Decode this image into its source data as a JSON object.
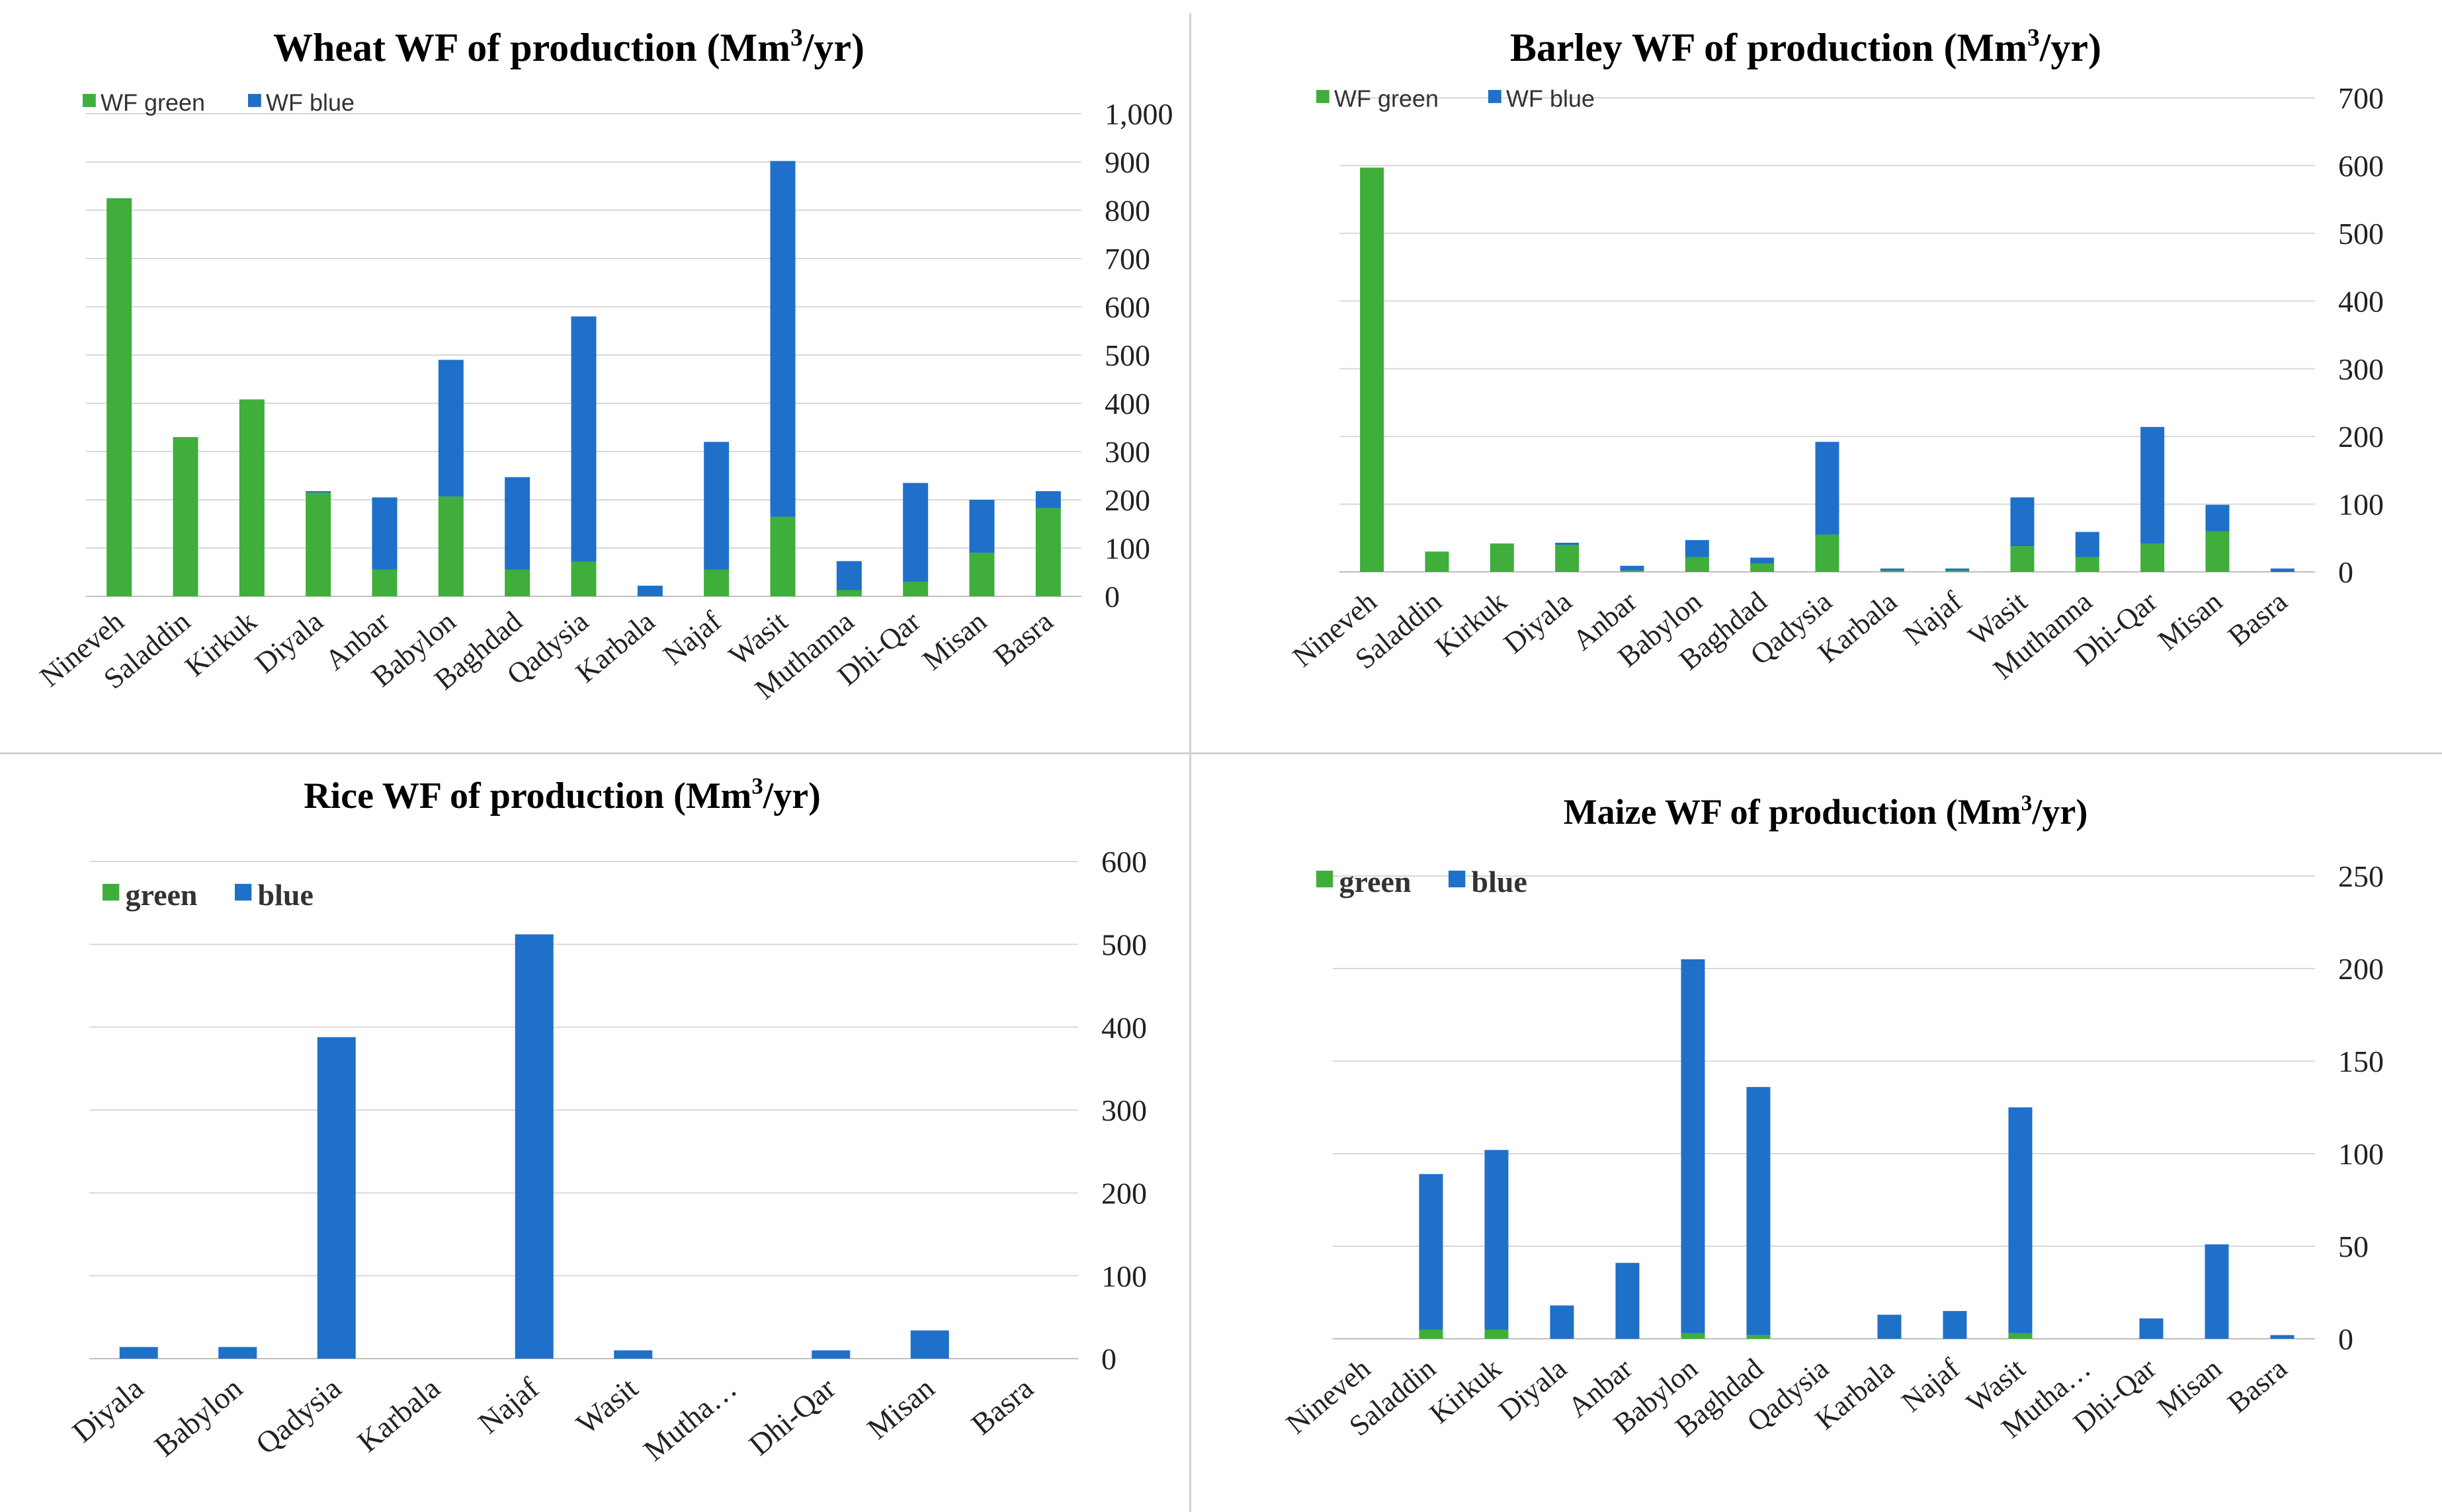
{
  "colors": {
    "green": "#3fae3b",
    "blue": "#1f70c8",
    "grid": "#d9d9d9"
  },
  "chart_data": [
    {
      "type": "bar",
      "stacked": true,
      "title": "Wheat WF  of production (Mm",
      "title_sup": "3",
      "title_end": "/yr)",
      "legend": [
        "WF green",
        "WF blue"
      ],
      "categories": [
        "Nineveh",
        "Saladdin",
        "Kirkuk",
        "Diyala",
        "Anbar",
        "Babylon",
        "Baghdad",
        "Qadysia",
        "Karbala",
        "Najaf",
        "Wasit",
        "Muthanna",
        "Dhi-Qar",
        "Misan",
        "Basra"
      ],
      "series": [
        {
          "name": "WF green",
          "values": [
            825,
            330,
            408,
            215,
            55,
            207,
            55,
            72,
            0,
            55,
            165,
            13,
            30,
            90,
            183
          ]
        },
        {
          "name": "WF blue",
          "values": [
            0,
            0,
            0,
            3,
            150,
            283,
            192,
            508,
            22,
            265,
            737,
            60,
            205,
            110,
            35
          ]
        }
      ],
      "ylim": [
        0,
        1000
      ],
      "yticks": [
        "0",
        "100",
        "200",
        "300",
        "400",
        "500",
        "600",
        "700",
        "800",
        "900",
        "1,000"
      ]
    },
    {
      "type": "bar",
      "stacked": true,
      "title": "Barley WF of production (Mm",
      "title_sup": "3",
      "title_end": "/yr)",
      "legend": [
        "WF green",
        "WF blue"
      ],
      "categories": [
        "Nineveh",
        "Saladdin",
        "Kirkuk",
        "Diyala",
        "Anbar",
        "Babylon",
        "Baghdad",
        "Qadysia",
        "Karbala",
        "Najaf",
        "Wasit",
        "Muthanna",
        "Dhi-Qar",
        "Misan",
        "Basra"
      ],
      "series": [
        {
          "name": "WF green",
          "values": [
            597,
            30,
            42,
            40,
            2,
            22,
            12,
            55,
            2,
            2,
            38,
            22,
            42,
            60,
            0
          ]
        },
        {
          "name": "WF blue",
          "values": [
            0,
            0,
            0,
            3,
            7,
            25,
            9,
            137,
            3,
            3,
            72,
            37,
            172,
            39,
            5
          ]
        }
      ],
      "ylim": [
        0,
        700
      ],
      "yticks": [
        "0",
        "100",
        "200",
        "300",
        "400",
        "500",
        "600",
        "700"
      ]
    },
    {
      "type": "bar",
      "stacked": true,
      "title": "Rice WF of production  (Mm",
      "title_sup": "3",
      "title_end": "/yr)",
      "legend": [
        "green",
        "blue"
      ],
      "categories": [
        "Diyala",
        "Babylon",
        "Qadysia",
        "Karbala",
        "Najaf",
        "Wasit",
        "Mutha…",
        "Dhi-Qar",
        "Misan",
        "Basra"
      ],
      "series": [
        {
          "name": "green",
          "values": [
            0,
            0,
            0,
            0,
            0,
            0,
            0,
            0,
            0,
            0
          ]
        },
        {
          "name": "blue",
          "values": [
            14,
            14,
            388,
            0,
            512,
            10,
            0,
            10,
            34,
            0
          ]
        }
      ],
      "ylim": [
        0,
        600
      ],
      "yticks": [
        "0",
        "100",
        "200",
        "300",
        "400",
        "500",
        "600"
      ]
    },
    {
      "type": "bar",
      "stacked": true,
      "title": "Maize  WF  of production   (Mm",
      "title_sup": "3",
      "title_end": "/yr)",
      "legend": [
        "green",
        "blue"
      ],
      "categories": [
        "Nineveh",
        "Saladdin",
        "Kirkuk",
        "Diyala",
        "Anbar",
        "Babylon",
        "Baghdad",
        "Qadysia",
        "Karbala",
        "Najaf",
        "Wasit",
        "Muthanna",
        "Dhi-Qar",
        "Misan",
        "Basra"
      ],
      "category_labels": [
        "Nineveh",
        "Saladdin",
        "Kirkuk",
        "Diyala",
        "Anbar",
        "Babylon",
        "Baghdad",
        "Qadysia",
        "Karbala",
        "Najaf",
        "Wasit",
        "Mutha…",
        "Dhi-Qar",
        "Misan",
        "Basra"
      ],
      "series": [
        {
          "name": "green",
          "values": [
            0,
            5,
            5,
            0,
            0,
            3,
            2,
            0,
            0,
            0,
            3,
            0,
            0,
            0,
            0
          ]
        },
        {
          "name": "blue",
          "values": [
            0,
            84,
            97,
            18,
            41,
            202,
            134,
            0,
            13,
            15,
            122,
            0,
            11,
            51,
            2
          ]
        }
      ],
      "ylim": [
        0,
        250
      ],
      "yticks": [
        "0",
        "50",
        "100",
        "150",
        "200",
        "250"
      ]
    }
  ]
}
